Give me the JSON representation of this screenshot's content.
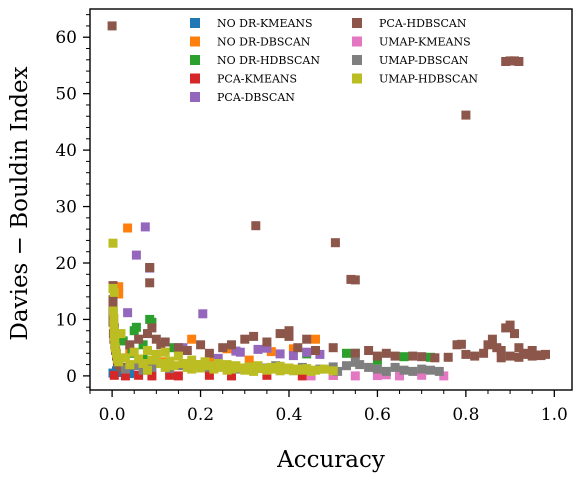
{
  "chart_data": {
    "type": "scatter",
    "title": "",
    "xlabel": "Accuracy",
    "ylabel": "Davies − Bouldin Index",
    "xlim": [
      -0.05,
      1.04
    ],
    "ylim": [
      -2.5,
      65
    ],
    "xticks": [
      "0.0",
      "0.2",
      "0.4",
      "0.6",
      "0.8",
      "1.0"
    ],
    "xtick_values": [
      0,
      0.2,
      0.4,
      0.6,
      0.8,
      1.0
    ],
    "yticks": [
      "0",
      "10",
      "20",
      "30",
      "40",
      "50",
      "60"
    ],
    "ytick_values": [
      0,
      10,
      20,
      30,
      40,
      50,
      60
    ],
    "grid": false,
    "legend_position": "top-center, two columns",
    "series": [
      {
        "name": "NO DR-KMEANS",
        "color": "#1f77b4",
        "points": [
          [
            0.002,
            0.5
          ],
          [
            0.01,
            0.9
          ],
          [
            0.02,
            0.6
          ],
          [
            0.04,
            0.4
          ]
        ]
      },
      {
        "name": "NO DR-DBSCAN",
        "color": "#ff7f0e",
        "points": [
          [
            0.035,
            26.2
          ],
          [
            0.015,
            15.8
          ],
          [
            0.015,
            14.5
          ],
          [
            0.04,
            4.5
          ],
          [
            0.1,
            3.5
          ],
          [
            0.18,
            6.5
          ],
          [
            0.22,
            3.2
          ],
          [
            0.26,
            4.8
          ],
          [
            0.31,
            2.8
          ],
          [
            0.36,
            4.3
          ],
          [
            0.41,
            4.8
          ],
          [
            0.46,
            6.5
          ],
          [
            0.12,
            2.5
          ]
        ]
      },
      {
        "name": "NO DR-HDBSCAN",
        "color": "#2ca02c",
        "points": [
          [
            0.005,
            8.5
          ],
          [
            0.025,
            6.2
          ],
          [
            0.05,
            8.0
          ],
          [
            0.055,
            8.6
          ],
          [
            0.085,
            10.0
          ],
          [
            0.09,
            9.5
          ],
          [
            0.045,
            4.0
          ],
          [
            0.07,
            5.5
          ],
          [
            0.14,
            5.0
          ],
          [
            0.44,
            3.9
          ],
          [
            0.53,
            4.0
          ],
          [
            0.55,
            4.0
          ],
          [
            0.66,
            3.4
          ],
          [
            0.72,
            3.3
          ],
          [
            0.07,
            3.0
          ],
          [
            0.6,
            2.8
          ]
        ]
      },
      {
        "name": "PCA-KMEANS",
        "color": "#d62728",
        "points": [
          [
            0.005,
            0.1
          ],
          [
            0.03,
            0.0
          ],
          [
            0.06,
            0.1
          ],
          [
            0.09,
            0.0
          ],
          [
            0.13,
            0.1
          ],
          [
            0.15,
            0.0
          ],
          [
            0.22,
            0.1
          ],
          [
            0.27,
            0.0
          ],
          [
            0.35,
            0.1
          ],
          [
            0.43,
            0.0
          ],
          [
            0.5,
            0.1
          ]
        ]
      },
      {
        "name": "PCA-DBSCAN",
        "color": "#9467bd",
        "points": [
          [
            0.075,
            26.4
          ],
          [
            0.055,
            21.4
          ],
          [
            0.205,
            11.0
          ],
          [
            0.035,
            11.2
          ],
          [
            0.085,
            19.1
          ],
          [
            0.28,
            4.4
          ],
          [
            0.29,
            4.2
          ],
          [
            0.33,
            4.7
          ],
          [
            0.35,
            4.9
          ],
          [
            0.38,
            3.9
          ],
          [
            0.41,
            3.6
          ],
          [
            0.16,
            5.0
          ],
          [
            0.44,
            4.2
          ],
          [
            0.47,
            3.8
          ],
          [
            0.24,
            3.1
          ]
        ]
      },
      {
        "name": "PCA-HDBSCAN",
        "color": "#8c564b",
        "points": [
          [
            0.0,
            62.0
          ],
          [
            0.9,
            55.8
          ],
          [
            0.89,
            55.7
          ],
          [
            0.91,
            55.8
          ],
          [
            0.92,
            55.7
          ],
          [
            0.8,
            46.2
          ],
          [
            0.325,
            26.6
          ],
          [
            0.505,
            23.6
          ],
          [
            0.54,
            17.1
          ],
          [
            0.55,
            17.0
          ],
          [
            0.085,
            19.2
          ],
          [
            0.085,
            16.5
          ],
          [
            0.002,
            16.0
          ],
          [
            0.002,
            13.5
          ],
          [
            0.002,
            12.0
          ],
          [
            0.002,
            11.0
          ],
          [
            0.002,
            9.5
          ],
          [
            0.005,
            8.5
          ],
          [
            0.003,
            7.5
          ],
          [
            0.004,
            6.5
          ],
          [
            0.006,
            5.5
          ],
          [
            0.008,
            4.5
          ],
          [
            0.01,
            3.5
          ],
          [
            0.012,
            2.5
          ],
          [
            0.015,
            2.0
          ],
          [
            0.02,
            1.5
          ],
          [
            0.04,
            5.5
          ],
          [
            0.06,
            6.5
          ],
          [
            0.08,
            7.5
          ],
          [
            0.09,
            8.5
          ],
          [
            0.1,
            6.5
          ],
          [
            0.11,
            5.5
          ],
          [
            0.12,
            6.0
          ],
          [
            0.15,
            5.0
          ],
          [
            0.17,
            4.5
          ],
          [
            0.2,
            5.5
          ],
          [
            0.22,
            4.0
          ],
          [
            0.25,
            5.0
          ],
          [
            0.27,
            5.5
          ],
          [
            0.3,
            6.5
          ],
          [
            0.32,
            7.0
          ],
          [
            0.35,
            6.0
          ],
          [
            0.38,
            7.5
          ],
          [
            0.4,
            8.0
          ],
          [
            0.4,
            7.0
          ],
          [
            0.42,
            5.0
          ],
          [
            0.44,
            6.5
          ],
          [
            0.46,
            4.5
          ],
          [
            0.5,
            5.0
          ],
          [
            0.55,
            4.0
          ],
          [
            0.58,
            4.5
          ],
          [
            0.6,
            3.5
          ],
          [
            0.62,
            4.0
          ],
          [
            0.64,
            3.5
          ],
          [
            0.68,
            3.5
          ],
          [
            0.7,
            3.4
          ],
          [
            0.73,
            3.2
          ],
          [
            0.76,
            3.3
          ],
          [
            0.78,
            5.5
          ],
          [
            0.79,
            5.6
          ],
          [
            0.8,
            3.8
          ],
          [
            0.82,
            3.5
          ],
          [
            0.84,
            4.0
          ],
          [
            0.85,
            5.5
          ],
          [
            0.86,
            6.5
          ],
          [
            0.87,
            5.0
          ],
          [
            0.88,
            4.5
          ],
          [
            0.89,
            8.5
          ],
          [
            0.9,
            9.0
          ],
          [
            0.91,
            7.5
          ],
          [
            0.92,
            5.0
          ],
          [
            0.93,
            4.0
          ],
          [
            0.94,
            3.8
          ],
          [
            0.95,
            4.5
          ],
          [
            0.96,
            3.7
          ],
          [
            0.97,
            3.6
          ],
          [
            0.98,
            3.8
          ],
          [
            0.9,
            3.5
          ],
          [
            0.88,
            3.2
          ],
          [
            0.92,
            3.3
          ],
          [
            0.95,
            3.5
          ]
        ]
      },
      {
        "name": "UMAP-KMEANS",
        "color": "#e377c2",
        "points": [
          [
            0.45,
            0.0
          ],
          [
            0.5,
            0.1
          ],
          [
            0.55,
            0.0
          ],
          [
            0.6,
            0.05
          ],
          [
            0.65,
            0.0
          ],
          [
            0.7,
            0.1
          ],
          [
            0.75,
            0.0
          ],
          [
            0.5,
            0.3
          ],
          [
            0.62,
            0.2
          ]
        ]
      },
      {
        "name": "UMAP-DBSCAN",
        "color": "#7f7f7f",
        "points": [
          [
            0.03,
            1.2
          ],
          [
            0.05,
            1.8
          ],
          [
            0.07,
            1.0
          ],
          [
            0.09,
            1.5
          ],
          [
            0.11,
            2.2
          ],
          [
            0.13,
            1.3
          ],
          [
            0.16,
            1.8
          ],
          [
            0.19,
            2.0
          ],
          [
            0.22,
            1.5
          ],
          [
            0.25,
            1.7
          ],
          [
            0.28,
            1.2
          ],
          [
            0.31,
            1.6
          ],
          [
            0.34,
            1.4
          ],
          [
            0.37,
            1.8
          ],
          [
            0.4,
            1.3
          ],
          [
            0.43,
            1.5
          ],
          [
            0.47,
            1.2
          ],
          [
            0.5,
            1.6
          ],
          [
            0.53,
            1.8
          ],
          [
            0.56,
            2.0
          ],
          [
            0.58,
            1.5
          ],
          [
            0.6,
            1.2
          ],
          [
            0.62,
            0.8
          ],
          [
            0.64,
            1.5
          ],
          [
            0.66,
            1.0
          ],
          [
            0.68,
            0.8
          ],
          [
            0.7,
            1.2
          ],
          [
            0.72,
            1.0
          ],
          [
            0.74,
            0.8
          ],
          [
            0.55,
            2.4
          ],
          [
            0.51,
            0.8
          ]
        ]
      },
      {
        "name": "UMAP-HDBSCAN",
        "color": "#bcbd22",
        "points": [
          [
            0.002,
            23.5
          ],
          [
            0.002,
            15.5
          ],
          [
            0.005,
            14.8
          ],
          [
            0.003,
            11.5
          ],
          [
            0.004,
            10.2
          ],
          [
            0.004,
            9.0
          ],
          [
            0.005,
            8.0
          ],
          [
            0.005,
            7.0
          ],
          [
            0.006,
            6.0
          ],
          [
            0.007,
            5.0
          ],
          [
            0.01,
            4.0
          ],
          [
            0.012,
            3.0
          ],
          [
            0.015,
            2.5
          ],
          [
            0.02,
            7.5
          ],
          [
            0.03,
            3.2
          ],
          [
            0.04,
            2.0
          ],
          [
            0.05,
            4.2
          ],
          [
            0.06,
            3.0
          ],
          [
            0.07,
            2.2
          ],
          [
            0.08,
            4.5
          ],
          [
            0.09,
            2.8
          ],
          [
            0.1,
            3.8
          ],
          [
            0.11,
            2.2
          ],
          [
            0.12,
            4.2
          ],
          [
            0.13,
            2.6
          ],
          [
            0.14,
            1.8
          ],
          [
            0.15,
            3.5
          ],
          [
            0.16,
            2.2
          ],
          [
            0.17,
            1.5
          ],
          [
            0.18,
            2.8
          ],
          [
            0.19,
            2.0
          ],
          [
            0.2,
            1.4
          ],
          [
            0.21,
            2.5
          ],
          [
            0.22,
            1.8
          ],
          [
            0.23,
            1.2
          ],
          [
            0.24,
            2.2
          ],
          [
            0.25,
            1.5
          ],
          [
            0.26,
            2.0
          ],
          [
            0.27,
            1.2
          ],
          [
            0.28,
            1.8
          ],
          [
            0.29,
            1.4
          ],
          [
            0.3,
            1.0
          ],
          [
            0.31,
            1.6
          ],
          [
            0.32,
            1.2
          ],
          [
            0.33,
            1.8
          ],
          [
            0.34,
            1.3
          ],
          [
            0.35,
            1.0
          ],
          [
            0.36,
            1.5
          ],
          [
            0.37,
            1.2
          ],
          [
            0.38,
            1.7
          ],
          [
            0.39,
            1.1
          ],
          [
            0.4,
            1.4
          ],
          [
            0.41,
            0.9
          ],
          [
            0.42,
            1.2
          ],
          [
            0.43,
            1.0
          ],
          [
            0.44,
            1.3
          ],
          [
            0.45,
            0.8
          ],
          [
            0.46,
            1.0
          ],
          [
            0.48,
            1.2
          ],
          [
            0.5,
            0.9
          ],
          [
            0.08,
            1.0
          ],
          [
            0.12,
            1.5
          ],
          [
            0.18,
            1.2
          ],
          [
            0.26,
            1.0
          ],
          [
            0.32,
            0.8
          ],
          [
            0.38,
            0.9
          ]
        ]
      }
    ]
  }
}
